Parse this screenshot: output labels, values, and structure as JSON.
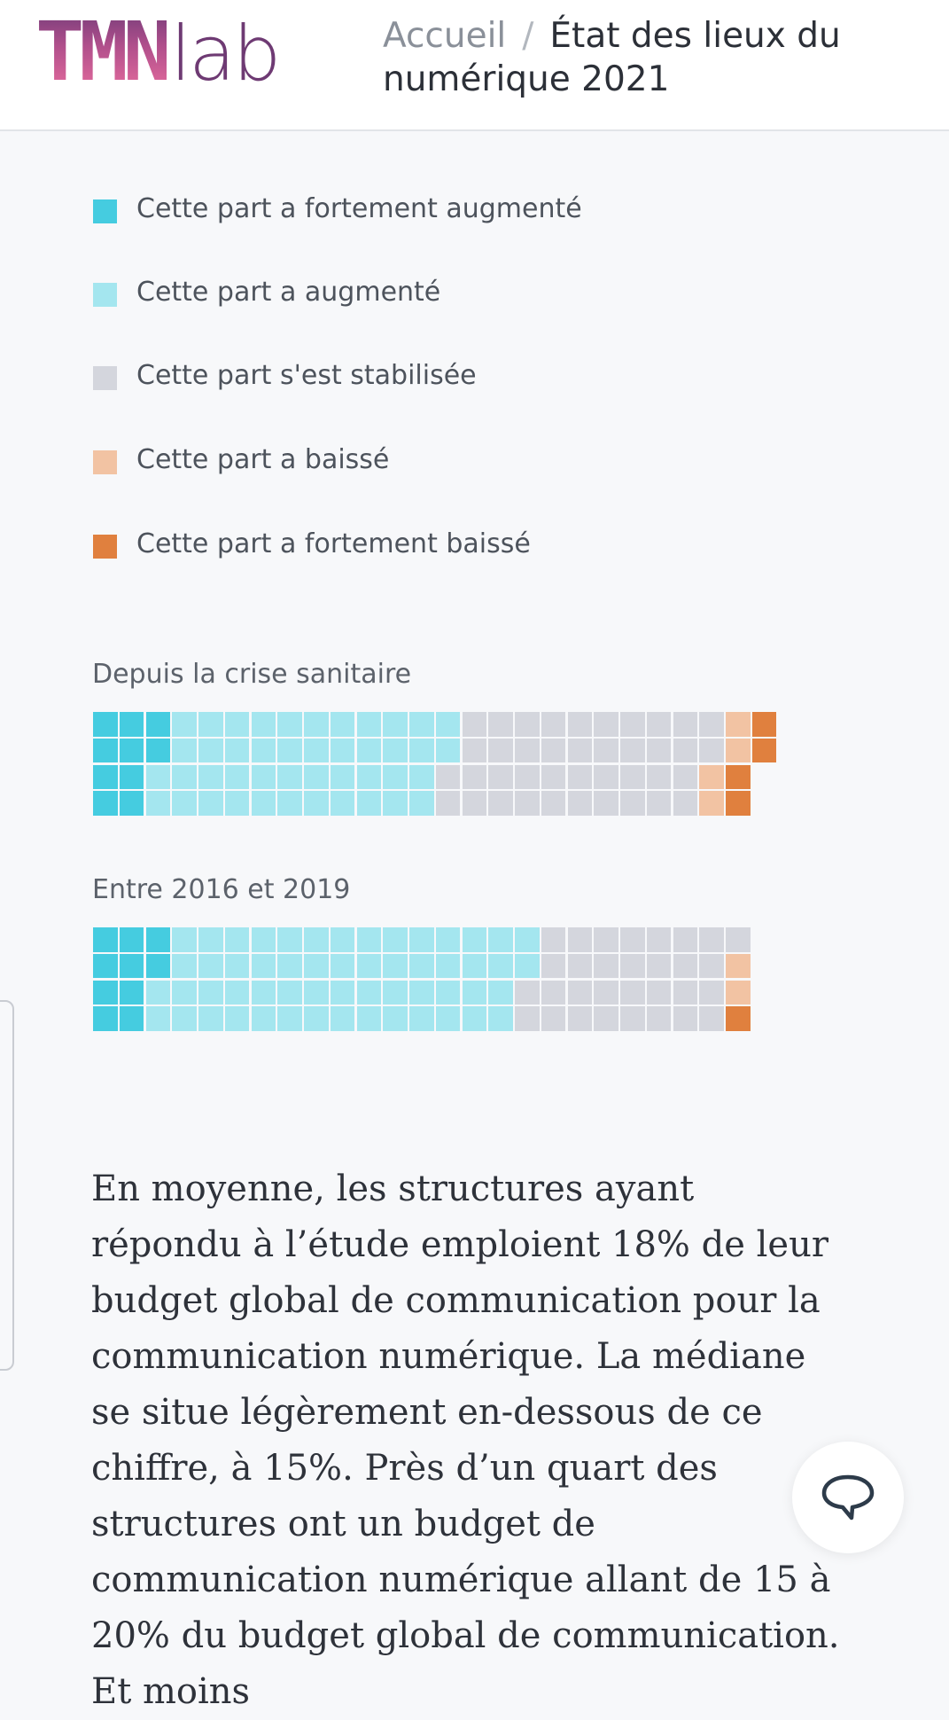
{
  "header": {
    "logo_mark": "TMN",
    "logo_text": "lab",
    "breadcrumb": {
      "home": "Accueil",
      "separator": "/",
      "current": "État des lieux du numérique 2021"
    }
  },
  "chart_data": {
    "type": "waffle",
    "rows": 4,
    "categories": [
      "Cette part a fortement augmenté",
      "Cette part a augmenté",
      "Cette part s'est stabilisée",
      "Cette part a baissé",
      "Cette part a fortement baissé"
    ],
    "colors": [
      "#45cce0",
      "#a4e6ef",
      "#d4d6dd",
      "#f2c3a3",
      "#e0803e"
    ],
    "series": [
      {
        "name": "Depuis la crise sanitaire",
        "values": [
          10,
          44,
          40,
          4,
          4
        ]
      },
      {
        "name": "Entre 2016 et 2019",
        "values": [
          10,
          56,
          31,
          2,
          1
        ]
      }
    ]
  },
  "paragraph": "En moyenne, les structures ayant répondu à l’étude emploient 18% de leur budget global de communication pour la communication numérique. La médiane se situe légèrement en-dessous de ce chiffre, à 15%. Près d’un quart des structures ont un budget de communication numérique allant de 15 à 20% du budget global de communication. Et moins"
}
